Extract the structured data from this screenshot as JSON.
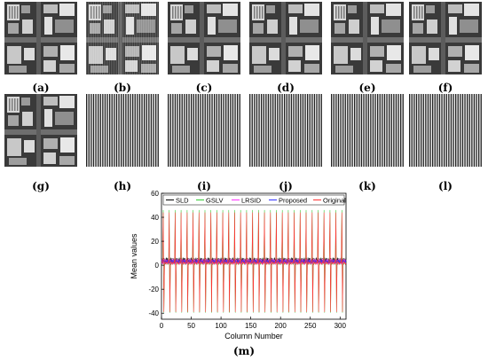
{
  "panels": [
    {
      "caption": "(a)",
      "kind": "image",
      "style": "clean"
    },
    {
      "caption": "(b)",
      "kind": "image",
      "style": "striped"
    },
    {
      "caption": "(c)",
      "kind": "image",
      "style": "clean"
    },
    {
      "caption": "(d)",
      "kind": "image",
      "style": "clean"
    },
    {
      "caption": "(e)",
      "kind": "image",
      "style": "clean"
    },
    {
      "caption": "(f)",
      "kind": "image",
      "style": "clean"
    },
    {
      "caption": "(g)",
      "kind": "image",
      "style": "clean"
    },
    {
      "caption": "(h)",
      "kind": "stripes"
    },
    {
      "caption": "(i)",
      "kind": "stripes"
    },
    {
      "caption": "(j)",
      "kind": "stripes"
    },
    {
      "caption": "(k)",
      "kind": "stripes"
    },
    {
      "caption": "(l)",
      "kind": "stripes"
    }
  ],
  "chart_caption": "(m)",
  "chart_data": {
    "type": "line",
    "title": "",
    "xlabel": "Column Number",
    "ylabel": "Mean values",
    "xlim": [
      0,
      310
    ],
    "ylim": [
      -45,
      60
    ],
    "xticks": [
      0,
      50,
      100,
      150,
      200,
      250,
      300
    ],
    "yticks": [
      -40,
      -20,
      0,
      20,
      40,
      60
    ],
    "grid": false,
    "legend_position": "top",
    "period": 10,
    "series": [
      {
        "name": "SLD",
        "color": "#000000",
        "pattern": "low-amplitude oscillation",
        "peak_max": 6,
        "peak_min": 2
      },
      {
        "name": "GSLV",
        "color": "#33cc33",
        "pattern": "spike train",
        "peak_max": 48,
        "peak_min": -40
      },
      {
        "name": "LRSID",
        "color": "#ff33ff",
        "pattern": "low-amplitude oscillation",
        "peak_max": 5,
        "peak_min": 1
      },
      {
        "name": "Proposed",
        "color": "#3333ff",
        "pattern": "low-amplitude oscillation",
        "peak_max": 4,
        "peak_min": 2
      },
      {
        "name": "Original",
        "color": "#ff3333",
        "pattern": "spike train",
        "peak_max": 45,
        "peak_min": -40
      }
    ]
  }
}
